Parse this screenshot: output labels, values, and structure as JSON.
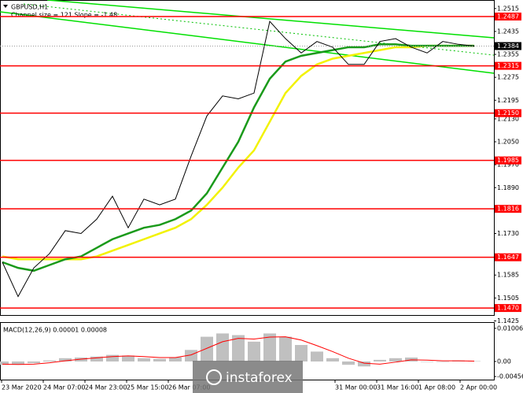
{
  "chart_data": {
    "type": "line",
    "symbol": "GBPUSD,H1",
    "subtitle": "Channel size = 121 Slope = -1.48",
    "ylim": [
      1.1451,
      1.2531
    ],
    "yticks": [
      {
        "value": 1.2515,
        "label": "1.2515"
      },
      {
        "value": 1.2435,
        "label": "1.2435"
      },
      {
        "value": 1.2355,
        "label": "1.2355"
      },
      {
        "value": 1.2275,
        "label": "1.2275"
      },
      {
        "value": 1.2195,
        "label": "1.2195"
      },
      {
        "value": 1.213,
        "label": "1.2130"
      },
      {
        "value": 1.205,
        "label": "1.2050"
      },
      {
        "value": 1.197,
        "label": "1.1970"
      },
      {
        "value": 1.189,
        "label": "1.1890"
      },
      {
        "value": 1.181,
        "label": "1.1810"
      },
      {
        "value": 1.173,
        "label": "1.1730"
      },
      {
        "value": 1.1585,
        "label": "1.1585"
      },
      {
        "value": 1.1505,
        "label": "1.1505"
      },
      {
        "value": 1.1425,
        "label": "1.1425"
      }
    ],
    "levels": [
      {
        "value": 1.2487,
        "label": "1.2487"
      },
      {
        "value": 1.2315,
        "label": "1.2315"
      },
      {
        "value": 1.215,
        "label": "1.2150"
      },
      {
        "value": 1.1985,
        "label": "1.1985"
      },
      {
        "value": 1.1816,
        "label": "1.1816"
      },
      {
        "value": 1.1647,
        "label": "1.1647"
      },
      {
        "value": 1.147,
        "label": "1.1470"
      }
    ],
    "level_color": "#ff0000",
    "current_price": 1.2384,
    "x_labels": [
      "23 Mar 2020",
      "24 Mar 07:00",
      "24 Mar 23:00",
      "25 Mar 15:00",
      "26 Mar 07:00",
      null,
      null,
      null,
      "31 Mar 00:00",
      "31 Mar 16:00",
      "1 Apr 08:00",
      "2 Apr 00:00"
    ],
    "series": [
      {
        "color": "#000000",
        "values": [
          1.163,
          1.151,
          1.161,
          1.166,
          1.174,
          1.173,
          1.178,
          1.186,
          1.175,
          1.185,
          1.183,
          1.185,
          1.2,
          1.214,
          1.221,
          1.22,
          1.222,
          1.247,
          1.241,
          1.236,
          1.24,
          1.238,
          1.232,
          1.232,
          1.24,
          1.241,
          1.238,
          1.236,
          1.24,
          1.239,
          1.2384
        ]
      },
      {
        "color": "#1a9a1a",
        "values": [
          1.163,
          1.161,
          1.16,
          1.162,
          1.164,
          1.165,
          1.168,
          1.171,
          1.173,
          1.175,
          1.176,
          1.178,
          1.181,
          1.187,
          1.196,
          1.205,
          1.217,
          1.227,
          1.233,
          1.235,
          1.236,
          1.237,
          1.238,
          1.238,
          1.239,
          1.239,
          1.2385,
          1.2385,
          1.2385,
          1.2385,
          1.2385
        ]
      },
      {
        "color": "#f2f200",
        "values": [
          1.165,
          1.164,
          1.164,
          1.164,
          1.164,
          1.164,
          1.165,
          1.167,
          1.169,
          1.171,
          1.173,
          1.175,
          1.178,
          1.183,
          1.189,
          1.196,
          1.202,
          1.212,
          1.222,
          1.228,
          1.232,
          1.234,
          1.235,
          1.236,
          1.237,
          1.238,
          1.238,
          1.2385,
          1.2385,
          1.2385,
          1.2385
        ]
      }
    ],
    "macd": {
      "title": "MACD(12,26,9) 0.00001 0.00008",
      "ylim": [
        -0.0055,
        0.0117
      ],
      "yticks": [
        0.01006,
        {
          "value": 0,
          "label": "0.00"
        },
        -0.00456
      ],
      "histogram": [
        -0.001,
        -0.001,
        -0.0005,
        0.0003,
        0.001,
        0.0012,
        0.0015,
        0.002,
        0.0018,
        0.001,
        0.0008,
        0.0013,
        0.0035,
        0.0075,
        0.0085,
        0.008,
        0.006,
        0.0085,
        0.0075,
        0.005,
        0.003,
        0.001,
        -0.001,
        -0.0015,
        0.0005,
        0.001,
        0.0012,
        0,
        0,
        0.0003,
        0.0001
      ],
      "signal": [
        -0.0008,
        -0.0009,
        -0.0008,
        -0.0004,
        0.0002,
        0.0007,
        0.0011,
        0.0015,
        0.0017,
        0.0015,
        0.0012,
        0.0012,
        0.002,
        0.004,
        0.006,
        0.007,
        0.0068,
        0.0074,
        0.0075,
        0.0065,
        0.0048,
        0.003,
        0.001,
        -0.0005,
        -0.0008,
        -0.0002,
        0.0005,
        0.0004,
        0.0002,
        0.0002,
        0.0001
      ],
      "histogram_color": "#c0c0c0",
      "signal_color": "#ff0000"
    },
    "watermark": "instaforex"
  }
}
